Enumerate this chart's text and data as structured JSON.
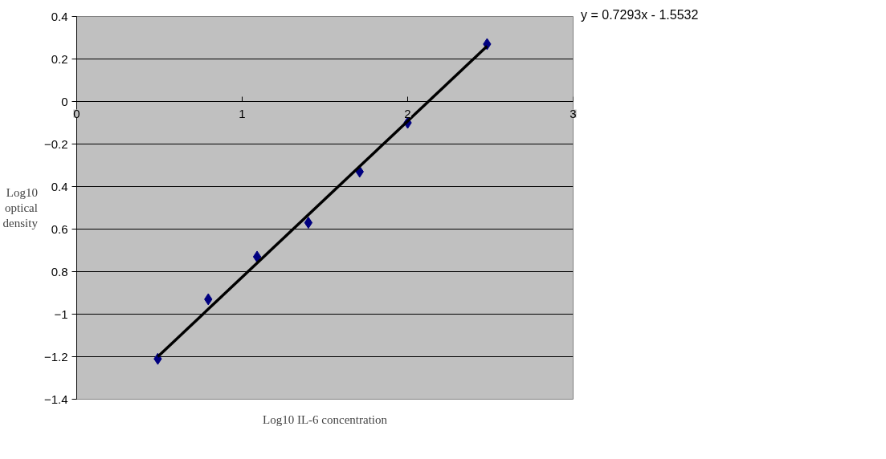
{
  "chart_data": {
    "type": "scatter",
    "xlabel": "Log10 IL-6 concentration",
    "ylabel": "Log10 optical density",
    "annotations": [
      "y = 0.7293x - 1.5532"
    ],
    "series": [
      {
        "color": "#000080",
        "marker": "diamond",
        "x": [
          0.49,
          0.795,
          1.09,
          1.4,
          1.71,
          2.0,
          2.48
        ],
        "values": [
          -1.21,
          -0.93,
          -0.73,
          -0.57,
          -0.33,
          -0.1,
          0.27
        ]
      },
      {
        "type": "line",
        "color": "#000000",
        "marker": "none",
        "x": [
          0.49,
          2.48
        ],
        "values": [
          -1.2,
          0.26
        ]
      }
    ],
    "xlim": [
      0,
      3
    ],
    "xticks": [
      0,
      1,
      2,
      3
    ],
    "ylim": [
      -1.4,
      0.4
    ],
    "yticks": [
      0.4,
      0.2,
      0,
      -0.2,
      {
        "value": -0.4,
        "label": "0.4"
      },
      {
        "value": -0.6,
        "label": "0.6"
      },
      {
        "value": -0.8,
        "label": "0.8"
      },
      -1,
      -1.2,
      -1.4
    ],
    "grid": "y"
  }
}
